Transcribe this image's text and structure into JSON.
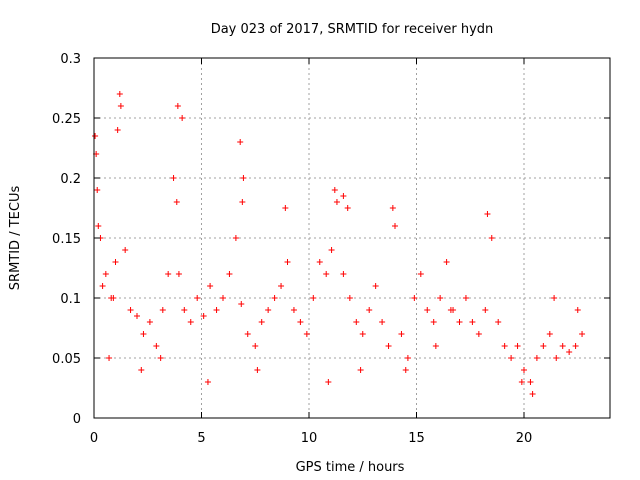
{
  "chart_data": {
    "type": "scatter",
    "title": "Day 023 of 2017, SRMTID for receiver hydn",
    "xlabel": "GPS time / hours",
    "ylabel": "SRMTID / TECUs",
    "xlim": [
      0,
      24
    ],
    "ylim": [
      0,
      0.3
    ],
    "xticks": [
      0,
      5,
      10,
      15,
      20
    ],
    "xtick_labels": [
      "0",
      "5",
      "10",
      "15",
      "20"
    ],
    "yticks": [
      0,
      0.05,
      0.1,
      0.15,
      0.2,
      0.25,
      0.3
    ],
    "ytick_labels": [
      "0",
      "0.05",
      "0.1",
      "0.15",
      "0.2",
      "0.25",
      "0.3"
    ],
    "grid": true,
    "marker": "+",
    "series": [
      {
        "name": "SRMTID",
        "color": "#ff0000",
        "x": [
          0.05,
          0.15,
          0.3,
          0.55,
          0.8,
          1.0,
          1.25,
          1.45,
          1.7,
          2.0,
          2.3,
          2.6,
          2.9,
          3.2,
          3.45,
          3.7,
          3.95,
          4.2,
          4.5,
          4.8,
          5.1,
          5.4,
          5.7,
          6.0,
          6.3,
          6.6,
          6.85,
          7.15,
          7.5,
          7.8,
          8.1,
          8.4,
          8.7,
          9.0,
          9.3,
          9.6,
          9.9,
          10.2,
          10.5,
          10.8,
          11.05,
          11.3,
          11.6,
          11.9,
          12.2,
          12.5,
          12.8,
          13.1,
          13.4,
          13.7,
          14.0,
          14.3,
          14.6,
          14.9,
          15.2,
          15.5,
          15.8,
          16.1,
          16.4,
          16.7,
          17.0,
          17.3,
          17.6,
          17.9,
          18.2,
          18.5,
          18.8,
          19.1,
          19.4,
          19.7,
          20.0,
          20.3,
          20.6,
          20.9,
          21.2,
          21.5,
          21.8,
          22.1,
          22.4,
          22.7,
          0.1,
          0.9,
          1.2,
          3.9,
          4.1,
          6.8,
          6.95,
          11.2,
          11.8,
          13.9,
          18.3,
          0.2,
          1.1,
          3.85,
          6.9,
          11.6,
          0.4,
          2.2,
          5.3,
          8.9,
          12.4,
          14.5,
          16.6,
          19.9,
          21.4,
          22.5,
          0.7,
          3.1,
          7.6,
          10.9,
          15.9,
          20.4
        ],
        "y": [
          0.235,
          0.19,
          0.15,
          0.12,
          0.1,
          0.13,
          0.26,
          0.14,
          0.09,
          0.085,
          0.07,
          0.08,
          0.06,
          0.09,
          0.12,
          0.2,
          0.12,
          0.09,
          0.08,
          0.1,
          0.085,
          0.11,
          0.09,
          0.1,
          0.12,
          0.15,
          0.095,
          0.07,
          0.06,
          0.08,
          0.09,
          0.1,
          0.11,
          0.13,
          0.09,
          0.08,
          0.07,
          0.1,
          0.13,
          0.12,
          0.14,
          0.18,
          0.12,
          0.1,
          0.08,
          0.07,
          0.09,
          0.11,
          0.08,
          0.06,
          0.16,
          0.07,
          0.05,
          0.1,
          0.12,
          0.09,
          0.08,
          0.1,
          0.13,
          0.09,
          0.08,
          0.1,
          0.08,
          0.07,
          0.09,
          0.15,
          0.08,
          0.06,
          0.05,
          0.06,
          0.04,
          0.03,
          0.05,
          0.06,
          0.07,
          0.05,
          0.06,
          0.055,
          0.06,
          0.07,
          0.22,
          0.1,
          0.27,
          0.26,
          0.25,
          0.23,
          0.2,
          0.19,
          0.175,
          0.175,
          0.17,
          0.16,
          0.24,
          0.18,
          0.18,
          0.185,
          0.11,
          0.04,
          0.03,
          0.175,
          0.04,
          0.04,
          0.09,
          0.03,
          0.1,
          0.09,
          0.05,
          0.05,
          0.04,
          0.03,
          0.06,
          0.02
        ]
      }
    ]
  }
}
